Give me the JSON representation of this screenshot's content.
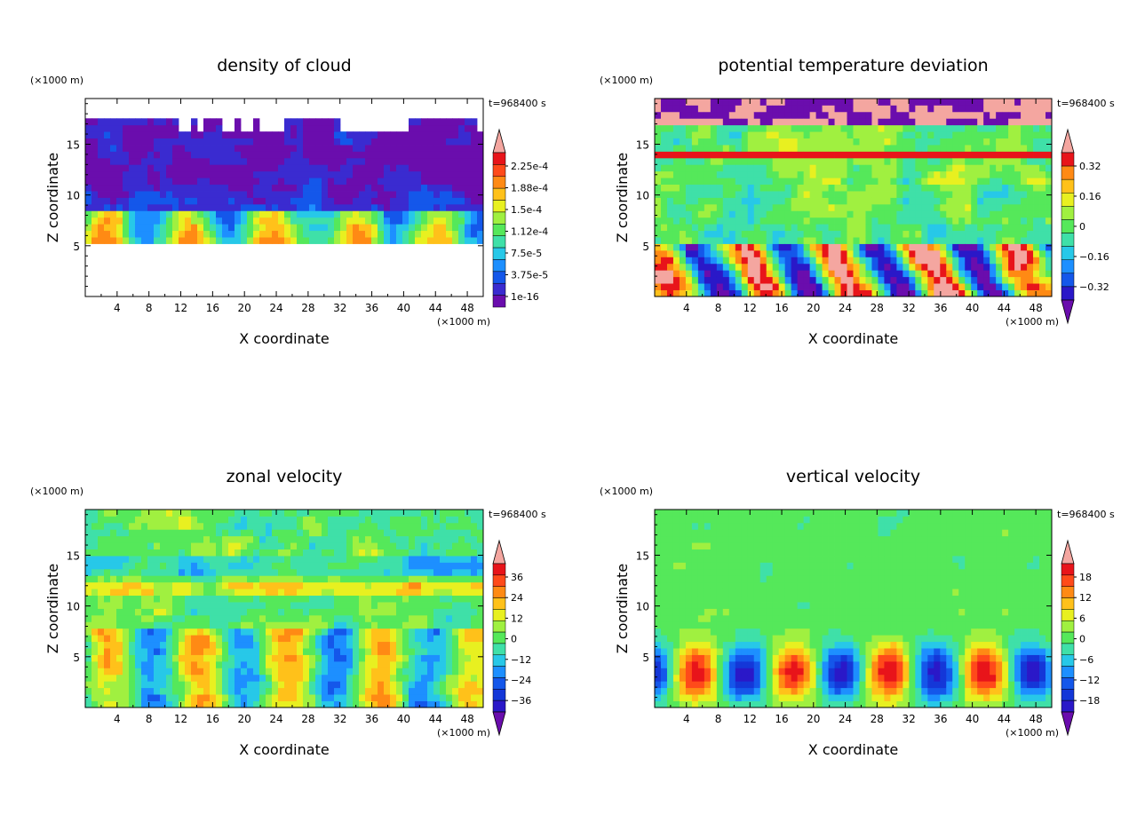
{
  "chart_data": [
    {
      "type": "heatmap",
      "title": "density of cloud",
      "xlabel": "X coordinate",
      "ylabel": "Z coordinate",
      "x_unit": "(×1000 m)",
      "z_unit": "(×1000 m)",
      "time": "t=968400 s",
      "xlim": [
        0,
        50
      ],
      "ylim": [
        0,
        19.5
      ],
      "x_ticks": [
        "4",
        "8",
        "12",
        "16",
        "20",
        "24",
        "28",
        "32",
        "36",
        "40",
        "44",
        "48"
      ],
      "y_ticks": [
        "5",
        "10",
        "15"
      ],
      "colorbar": {
        "labels": [
          "1e-16",
          "3.75e-5",
          "7.5e-5",
          "1.12e-4",
          "1.5e-4",
          "1.88e-4",
          "2.25e-4"
        ],
        "colors": [
          "#6a0dad",
          "#3a2bd0",
          "#1457ea",
          "#1d8fff",
          "#27c8e8",
          "#3fe0a8",
          "#55e85a",
          "#a0f040",
          "#e8f020",
          "#ffc11a",
          "#ff8a14",
          "#ff4a1a",
          "#e8141a",
          "#f4a6a0"
        ],
        "extend": "max"
      }
    },
    {
      "type": "heatmap",
      "title": "potential temperature deviation",
      "xlabel": "X coordinate",
      "ylabel": "Z coordinate",
      "x_unit": "(×1000 m)",
      "z_unit": "(×1000 m)",
      "time": "t=968400 s",
      "xlim": [
        0,
        50
      ],
      "ylim": [
        0,
        19.5
      ],
      "x_ticks": [
        "4",
        "8",
        "12",
        "16",
        "20",
        "24",
        "28",
        "32",
        "36",
        "40",
        "44",
        "48"
      ],
      "y_ticks": [
        "5",
        "10",
        "15"
      ],
      "colorbar": {
        "labels": [
          "−0.32",
          "−0.16",
          "0",
          "0.16",
          "0.32"
        ],
        "colors": [
          "#6a0dad",
          "#2a18c8",
          "#1457ea",
          "#1d8fff",
          "#27c8e8",
          "#3fe0a8",
          "#55e85a",
          "#a0f040",
          "#e8f020",
          "#ffc11a",
          "#ff8a14",
          "#e8141a",
          "#f4a6a0"
        ],
        "extend": "both"
      }
    },
    {
      "type": "heatmap",
      "title": "zonal velocity",
      "xlabel": "X coordinate",
      "ylabel": "Z coordinate",
      "x_unit": "(×1000 m)",
      "z_unit": "(×1000 m)",
      "time": "t=968400 s",
      "xlim": [
        0,
        50
      ],
      "ylim": [
        0,
        19.5
      ],
      "x_ticks": [
        "4",
        "8",
        "12",
        "16",
        "20",
        "24",
        "28",
        "32",
        "36",
        "40",
        "44",
        "48"
      ],
      "y_ticks": [
        "5",
        "10",
        "15"
      ],
      "colorbar": {
        "labels": [
          "−36",
          "−24",
          "−12",
          "0",
          "12",
          "24",
          "36"
        ],
        "colors": [
          "#6a0dad",
          "#2a18c8",
          "#1437d8",
          "#1457ea",
          "#1d8fff",
          "#27c8e8",
          "#3fe0a8",
          "#55e85a",
          "#a0f040",
          "#e8f020",
          "#ffc11a",
          "#ff8a14",
          "#ff4a1a",
          "#e8141a",
          "#f4a6a0"
        ],
        "extend": "both"
      }
    },
    {
      "type": "heatmap",
      "title": "vertical velocity",
      "xlabel": "X coordinate",
      "ylabel": "Z coordinate",
      "x_unit": "(×1000 m)",
      "z_unit": "(×1000 m)",
      "time": "t=968400 s",
      "xlim": [
        0,
        50
      ],
      "ylim": [
        0,
        19.5
      ],
      "x_ticks": [
        "4",
        "8",
        "12",
        "16",
        "20",
        "24",
        "28",
        "32",
        "36",
        "40",
        "44",
        "48"
      ],
      "y_ticks": [
        "5",
        "10",
        "15"
      ],
      "colorbar": {
        "labels": [
          "−18",
          "−12",
          "−6",
          "0",
          "6",
          "12",
          "18"
        ],
        "colors": [
          "#6a0dad",
          "#2a18c8",
          "#1437d8",
          "#1457ea",
          "#1d8fff",
          "#27c8e8",
          "#3fe0a8",
          "#55e85a",
          "#a0f040",
          "#e8f020",
          "#ffc11a",
          "#ff8a14",
          "#ff4a1a",
          "#e8141a",
          "#f4a6a0"
        ],
        "extend": "both"
      }
    }
  ]
}
